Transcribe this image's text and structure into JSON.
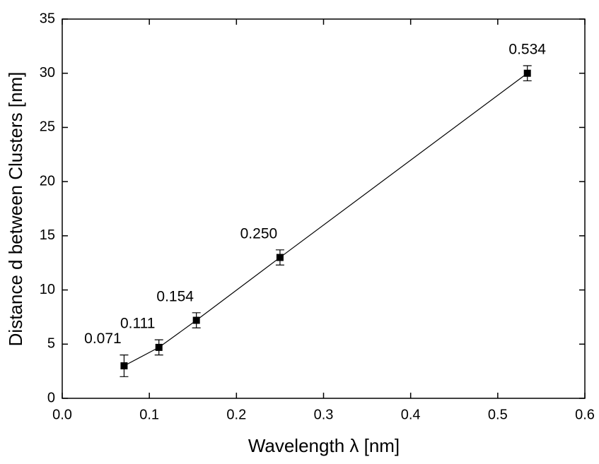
{
  "chart_data": {
    "type": "line",
    "xlabel": "Wavelength λ   [nm]",
    "ylabel": "Distance d between Clusters  [nm]",
    "x": [
      0.071,
      0.111,
      0.154,
      0.25,
      0.534
    ],
    "x_labels": [
      "0.071",
      "0.111",
      "0.154",
      "0.250",
      "0.534"
    ],
    "series": [
      {
        "color": "#000000",
        "values": [
          3.0,
          4.7,
          7.2,
          13.0,
          30.0
        ],
        "errors": [
          1.0,
          0.7,
          0.7,
          0.7,
          0.7
        ]
      }
    ],
    "xlim": [
      0,
      0.6
    ],
    "xticks": [
      {
        "value": 0,
        "label": "0.0"
      },
      0.1,
      0.2,
      0.3,
      0.4,
      0.5,
      0.6
    ],
    "ylim": [
      0,
      35
    ],
    "yticks": [
      0,
      5,
      10,
      15,
      20,
      25,
      30,
      35
    ]
  }
}
